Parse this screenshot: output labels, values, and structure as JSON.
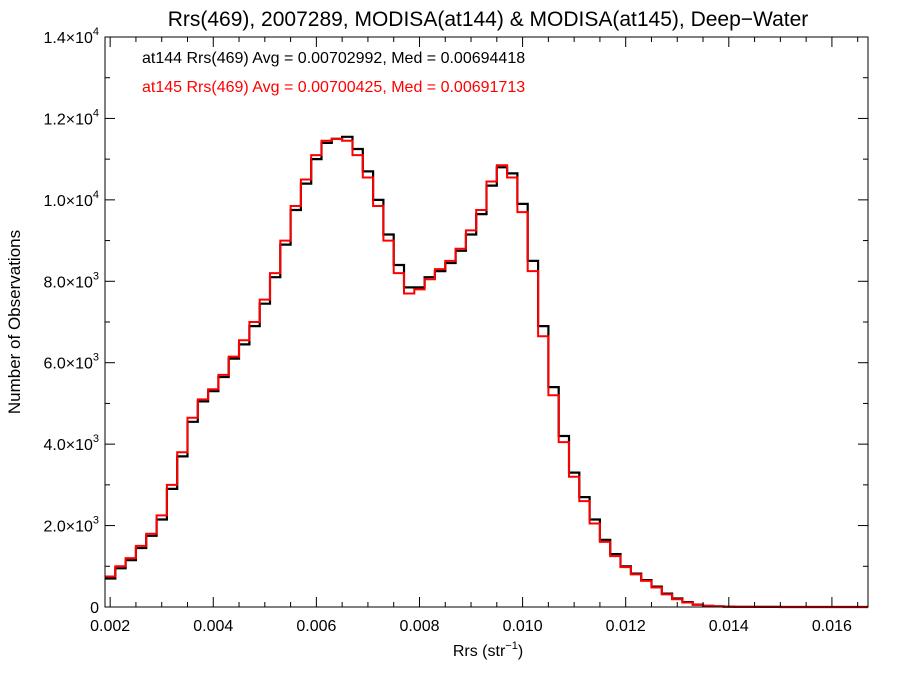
{
  "chart_data": {
    "type": "line",
    "title": "Rrs(469), 2007289, MODISA(at144) & MODISA(at145), Deep−Water",
    "xlabel": "Rrs (str",
    "xlabel_sup": "−1",
    "xlabel_suffix": ")",
    "ylabel": "Number of Observations",
    "xlim": [
      0.0019,
      0.0167
    ],
    "ylim": [
      0,
      14000
    ],
    "grid": false,
    "step": true,
    "x_ticks": [
      0.002,
      0.004,
      0.006,
      0.008,
      0.01,
      0.012,
      0.014,
      0.016
    ],
    "x_tick_labels": [
      "0.002",
      "0.004",
      "0.006",
      "0.008",
      "0.010",
      "0.012",
      "0.014",
      "0.016"
    ],
    "y_ticks": [
      0,
      2000,
      4000,
      6000,
      8000,
      10000,
      12000,
      14000
    ],
    "y_tick_labels": [
      {
        "mant": "0",
        "exp": ""
      },
      {
        "mant": "2.0×10",
        "exp": "3"
      },
      {
        "mant": "4.0×10",
        "exp": "3"
      },
      {
        "mant": "6.0×10",
        "exp": "3"
      },
      {
        "mant": "8.0×10",
        "exp": "3"
      },
      {
        "mant": "1.0×10",
        "exp": "4"
      },
      {
        "mant": "1.2×10",
        "exp": "4"
      },
      {
        "mant": "1.4×10",
        "exp": "4"
      }
    ],
    "annotations": [
      {
        "text": "at144 Rrs(469) Avg = 0.00702992, Med = 0.00694418",
        "color": "#000000"
      },
      {
        "text": "at145 Rrs(469) Avg = 0.00700425, Med = 0.00691713",
        "color": "#ff0000"
      }
    ],
    "series": [
      {
        "color": "#000000",
        "x": [
          0.0019,
          0.0021,
          0.0023,
          0.0025,
          0.0027,
          0.0029,
          0.0031,
          0.0033,
          0.0035,
          0.0037,
          0.0039,
          0.0041,
          0.0043,
          0.0045,
          0.0047,
          0.0049,
          0.0051,
          0.0053,
          0.0055,
          0.0057,
          0.0059,
          0.0061,
          0.0063,
          0.0065,
          0.0067,
          0.0069,
          0.0071,
          0.0073,
          0.0075,
          0.0077,
          0.0079,
          0.0081,
          0.0083,
          0.0085,
          0.0087,
          0.0089,
          0.0091,
          0.0093,
          0.0095,
          0.0097,
          0.0099,
          0.0101,
          0.0103,
          0.0105,
          0.0107,
          0.0109,
          0.0111,
          0.0113,
          0.0115,
          0.0117,
          0.0119,
          0.0121,
          0.0123,
          0.0125,
          0.0127,
          0.0129,
          0.0131,
          0.0133,
          0.0135,
          0.0137,
          0.0139,
          0.0141,
          0.0145,
          0.015,
          0.0155,
          0.016,
          0.0167
        ],
        "y": [
          700,
          950,
          1150,
          1450,
          1750,
          2150,
          2900,
          3700,
          4550,
          5050,
          5300,
          5650,
          6100,
          6450,
          6900,
          7450,
          8100,
          8900,
          9750,
          10400,
          11000,
          11400,
          11500,
          11550,
          11250,
          10700,
          10000,
          9150,
          8400,
          7850,
          7850,
          8100,
          8250,
          8450,
          8750,
          9150,
          9650,
          10350,
          10800,
          10650,
          9900,
          8500,
          6900,
          5400,
          4200,
          3300,
          2700,
          2150,
          1650,
          1300,
          1000,
          820,
          660,
          500,
          330,
          210,
          120,
          60,
          30,
          15,
          8,
          4,
          2,
          1,
          0,
          0,
          0
        ]
      },
      {
        "color": "#ff0000",
        "x": [
          0.0019,
          0.0021,
          0.0023,
          0.0025,
          0.0027,
          0.0029,
          0.0031,
          0.0033,
          0.0035,
          0.0037,
          0.0039,
          0.0041,
          0.0043,
          0.0045,
          0.0047,
          0.0049,
          0.0051,
          0.0053,
          0.0055,
          0.0057,
          0.0059,
          0.0061,
          0.0063,
          0.0065,
          0.0067,
          0.0069,
          0.0071,
          0.0073,
          0.0075,
          0.0077,
          0.0079,
          0.0081,
          0.0083,
          0.0085,
          0.0087,
          0.0089,
          0.0091,
          0.0093,
          0.0095,
          0.0097,
          0.0099,
          0.0101,
          0.0103,
          0.0105,
          0.0107,
          0.0109,
          0.0111,
          0.0113,
          0.0115,
          0.0117,
          0.0119,
          0.0121,
          0.0123,
          0.0125,
          0.0127,
          0.0129,
          0.0131,
          0.0133,
          0.0135,
          0.0137,
          0.0139,
          0.0141,
          0.0145,
          0.015,
          0.0155,
          0.016,
          0.0167
        ],
        "y": [
          750,
          1000,
          1200,
          1500,
          1800,
          2250,
          3000,
          3800,
          4650,
          5100,
          5350,
          5700,
          6150,
          6550,
          7000,
          7550,
          8200,
          9000,
          9850,
          10500,
          11100,
          11450,
          11500,
          11450,
          11100,
          10550,
          9850,
          9000,
          8200,
          7700,
          7800,
          8050,
          8300,
          8500,
          8800,
          9250,
          9750,
          10450,
          10850,
          10550,
          9700,
          8250,
          6650,
          5200,
          4050,
          3200,
          2600,
          2050,
          1600,
          1250,
          980,
          800,
          640,
          480,
          310,
          190,
          110,
          55,
          28,
          14,
          7,
          3,
          2,
          1,
          0,
          0,
          0
        ]
      }
    ]
  }
}
